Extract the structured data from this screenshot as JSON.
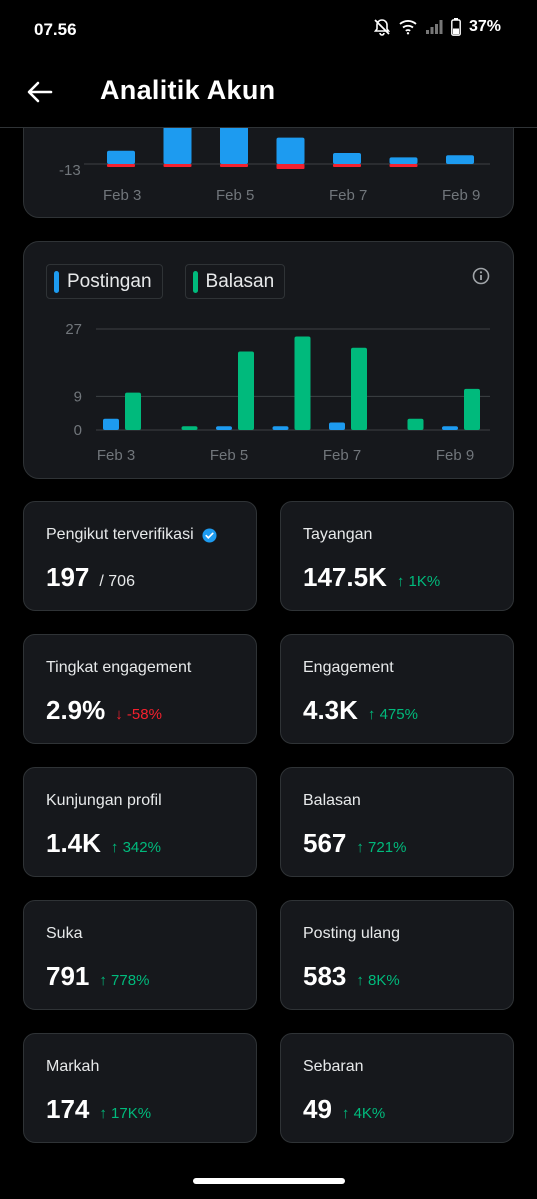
{
  "status_bar": {
    "time": "07.56",
    "battery": "37%"
  },
  "header": {
    "title": "Analitik Akun"
  },
  "chart_top": {
    "y_tick": "-13",
    "x_ticks": [
      "Feb 3",
      "Feb 5",
      "Feb 7",
      "Feb 9"
    ]
  },
  "chart_data": [
    {
      "type": "bar",
      "categories": [
        "Feb 3",
        "Feb 4",
        "Feb 5",
        "Feb 6",
        "Feb 7",
        "Feb 8",
        "Feb 9"
      ],
      "series": [
        {
          "values": [
            6,
            40,
            40,
            12,
            5,
            3,
            4
          ],
          "color": "#1d9bf0"
        },
        {
          "values": [
            -3,
            -3,
            -3,
            -5,
            -3,
            -3,
            0
          ],
          "color": "#f4212e"
        }
      ],
      "y_tick_labels": [
        "-13"
      ],
      "x_tick_labels": [
        "Feb 3",
        "Feb 5",
        "Feb 7",
        "Feb 9"
      ]
    },
    {
      "type": "bar",
      "categories": [
        "Feb 3",
        "Feb 4",
        "Feb 5",
        "Feb 6",
        "Feb 7",
        "Feb 8",
        "Feb 9"
      ],
      "series": [
        {
          "name": "Postingan",
          "values": [
            3,
            0,
            1,
            1,
            2,
            0,
            1
          ],
          "color": "#1d9bf0"
        },
        {
          "name": "Balasan",
          "values": [
            10,
            1,
            21,
            25,
            22,
            3,
            11
          ],
          "color": "#00ba7c"
        }
      ],
      "y_tick_labels": [
        "27",
        "9",
        "0"
      ],
      "ylim": [
        0,
        27
      ],
      "x_tick_labels": [
        "Feb 3",
        "Feb 5",
        "Feb 7",
        "Feb 9"
      ]
    }
  ],
  "legend": {
    "posts": "Postingan",
    "replies": "Balasan"
  },
  "stats": [
    {
      "label": "Pengikut terverifikasi",
      "value": "197",
      "sub": "/ 706",
      "change": "",
      "dir": ""
    },
    {
      "label": "Tayangan",
      "value": "147.5K",
      "sub": "",
      "change": "↑ 1K%",
      "dir": "up"
    },
    {
      "label": "Tingkat engagement",
      "value": "2.9%",
      "sub": "",
      "change": "↓ -58%",
      "dir": "down"
    },
    {
      "label": "Engagement",
      "value": "4.3K",
      "sub": "",
      "change": "↑ 475%",
      "dir": "up"
    },
    {
      "label": "Kunjungan profil",
      "value": "1.4K",
      "sub": "",
      "change": "↑ 342%",
      "dir": "up"
    },
    {
      "label": "Balasan",
      "value": "567",
      "sub": "",
      "change": "↑ 721%",
      "dir": "up"
    },
    {
      "label": "Suka",
      "value": "791",
      "sub": "",
      "change": "↑ 778%",
      "dir": "up"
    },
    {
      "label": "Posting ulang",
      "value": "583",
      "sub": "",
      "change": "↑ 8K%",
      "dir": "up"
    },
    {
      "label": "Markah",
      "value": "174",
      "sub": "",
      "change": "↑ 17K%",
      "dir": "up"
    },
    {
      "label": "Sebaran",
      "value": "49",
      "sub": "",
      "change": "↑ 4K%",
      "dir": "up"
    }
  ],
  "colors": {
    "accent": "#1d9bf0",
    "green": "#00ba7c",
    "red": "#f4212e",
    "card": "#16181c",
    "border": "#2f3336"
  }
}
